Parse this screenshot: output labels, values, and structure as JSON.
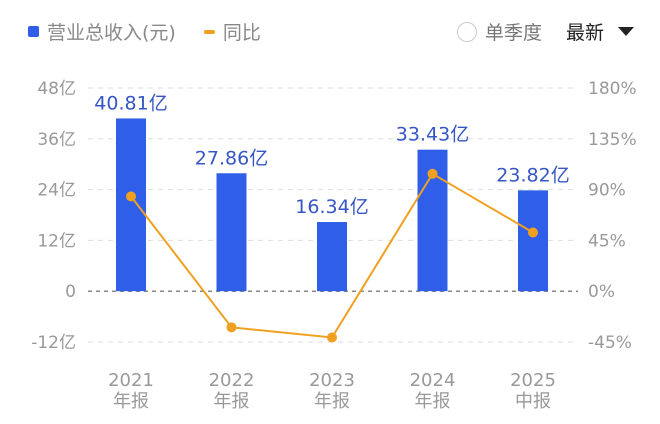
{
  "legend": {
    "revenue_label": "营业总收入(元)",
    "yoy_label": "同比"
  },
  "controls": {
    "single_quarter_label": "单季度",
    "single_quarter_checked": false,
    "sort_label": "最新"
  },
  "colors": {
    "bar": "#2f5fe8",
    "line": "#f0a020",
    "value_label": "#3556c4",
    "axis_text": "#999999",
    "grid": "#dddddd"
  },
  "chart_data": {
    "type": "bar",
    "categories": [
      "2021年报",
      "2022年报",
      "2023年报",
      "2024年报",
      "2025中报"
    ],
    "category_lines": [
      [
        "2021",
        "年报"
      ],
      [
        "2022",
        "年报"
      ],
      [
        "2023",
        "年报"
      ],
      [
        "2024",
        "年报"
      ],
      [
        "2025",
        "中报"
      ]
    ],
    "series": [
      {
        "name": "营业总收入(元)",
        "type": "bar",
        "axis": "left",
        "unit": "亿",
        "values": [
          40.81,
          27.86,
          16.34,
          33.43,
          23.82
        ],
        "labels": [
          "40.81亿",
          "27.86亿",
          "16.34亿",
          "33.43亿",
          "23.82亿"
        ]
      },
      {
        "name": "同比",
        "type": "line",
        "axis": "right",
        "unit": "%",
        "values": [
          84,
          -32,
          -41,
          104,
          52
        ]
      }
    ],
    "left_axis": {
      "ticks": [
        "48亿",
        "36亿",
        "24亿",
        "12亿",
        "0",
        "-12亿"
      ],
      "values": [
        48,
        36,
        24,
        12,
        0,
        -12
      ],
      "ylim": [
        -12,
        48
      ]
    },
    "right_axis": {
      "ticks": [
        "180%",
        "135%",
        "90%",
        "45%",
        "0%",
        "-45%"
      ],
      "values": [
        180,
        135,
        90,
        45,
        0,
        -45
      ],
      "ylim": [
        -45,
        180
      ]
    },
    "grid": true,
    "legend_position": "top-left"
  }
}
